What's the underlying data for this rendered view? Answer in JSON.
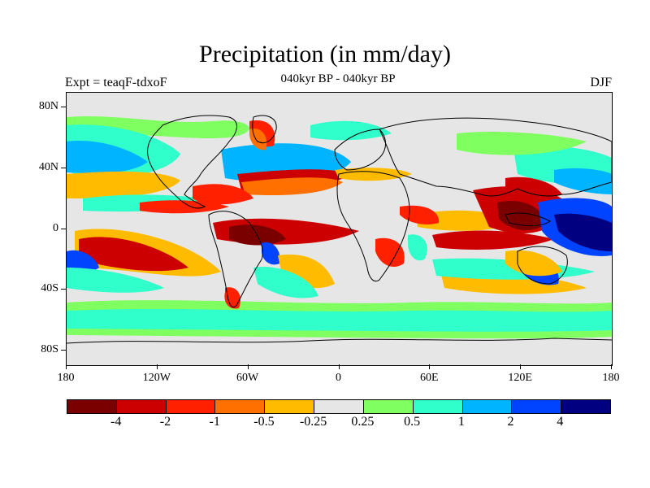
{
  "title": "Precipitation (in mm/day)",
  "subtitle": "040kyr BP - 040kyr BP",
  "left_label": "Expt = teaqF-tdxoF",
  "right_label": "DJF",
  "lat_ticks": [
    "80N",
    "40N",
    "0",
    "40S",
    "80S"
  ],
  "lon_ticks": [
    "180",
    "120W",
    "60W",
    "0",
    "60E",
    "120E",
    "180"
  ],
  "colorbar": {
    "colors": [
      "#7a0000",
      "#cc0000",
      "#ff2000",
      "#ff7000",
      "#ffbb00",
      "#e6e6e6",
      "#80ff60",
      "#30ffcc",
      "#00b4ff",
      "#0044ff",
      "#000080"
    ],
    "labels": [
      "-4",
      "-2",
      "-1",
      "-0.5",
      "-0.25",
      "0.25",
      "0.5",
      "1",
      "2",
      "4"
    ]
  },
  "regions": [
    {
      "name": "north-pacific-red-band",
      "level": "-1"
    },
    {
      "name": "equatorial-atlantic-red",
      "level": "-4"
    },
    {
      "name": "south-pacific-dark-red",
      "level": "-4"
    },
    {
      "name": "maritime-continent-red",
      "level": "-4"
    },
    {
      "name": "west-pacific-dark-blue",
      "level": "4"
    },
    {
      "name": "north-atlantic-blue",
      "level": "2"
    },
    {
      "name": "southern-ocean-green",
      "level": "0.5"
    },
    {
      "name": "south-pacific-blue",
      "level": "2"
    }
  ]
}
